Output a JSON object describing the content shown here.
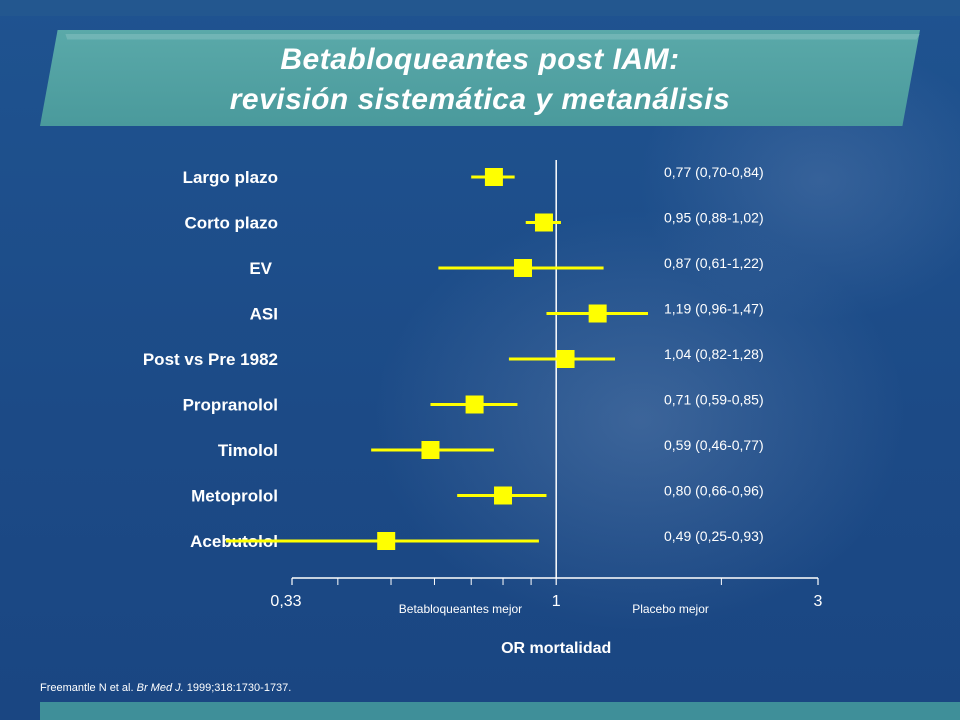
{
  "header": {
    "title_line1": "Betabloqueantes post IAM:",
    "title_line2": "revisión sistemática y metanálisis"
  },
  "colors": {
    "background": "#1e4e8c",
    "banner": "#4a9a9c",
    "marker": "#ffff00",
    "text": "#ffffff"
  },
  "chart_data": {
    "type": "forest",
    "xlabel": "OR mortalidad",
    "x_scale": "log",
    "xlim": [
      0.33,
      3
    ],
    "reference_line": 1,
    "tick_labels": [
      "0,33",
      "1",
      "3"
    ],
    "tick_values": [
      0.33,
      1,
      3
    ],
    "left_annotation": "Betabloqueantes mejor",
    "right_annotation": "Placebo mejor",
    "rows": [
      {
        "label": "Largo plazo",
        "or": 0.77,
        "low": 0.7,
        "high": 0.84,
        "text": "0,77 (0,70-0,84)"
      },
      {
        "label": "Corto plazo",
        "or": 0.95,
        "low": 0.88,
        "high": 1.02,
        "text": "0,95 (0,88-1,02)"
      },
      {
        "label": "EV",
        "or": 0.87,
        "low": 0.61,
        "high": 1.22,
        "text": "0,87 (0,61-1,22)"
      },
      {
        "label": "ASI",
        "or": 1.19,
        "low": 0.96,
        "high": 1.47,
        "text": "1,19 (0,96-1,47)"
      },
      {
        "label": "Post vs Pre 1982",
        "or": 1.04,
        "low": 0.82,
        "high": 1.28,
        "text": "1,04 (0,82-1,28)"
      },
      {
        "label": "Propranolol",
        "or": 0.71,
        "low": 0.59,
        "high": 0.85,
        "text": "0,71 (0,59-0,85)"
      },
      {
        "label": "Timolol",
        "or": 0.59,
        "low": 0.46,
        "high": 0.77,
        "text": "0,59 (0,46-0,77)"
      },
      {
        "label": "Metoprolol",
        "or": 0.8,
        "low": 0.66,
        "high": 0.96,
        "text": "0,80 (0,66-0,96)"
      },
      {
        "label": "Acebutolol",
        "or": 0.49,
        "low": 0.25,
        "high": 0.93,
        "text": "0,49 (0,25-0,93)"
      }
    ]
  },
  "citation": {
    "authors": "Freemantle N et al.",
    "journal": "Br Med J.",
    "details": "1999;318:1730-1737."
  }
}
